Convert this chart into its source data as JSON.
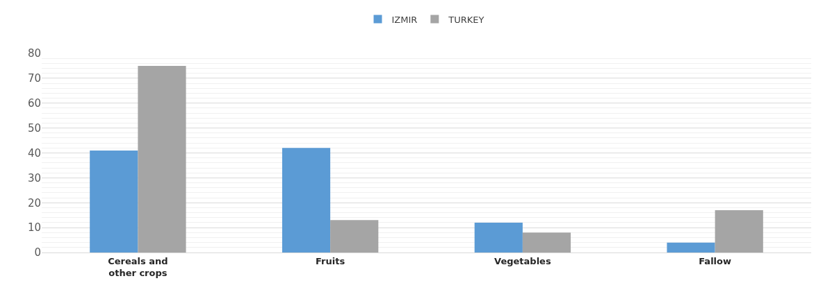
{
  "chart_data": {
    "type": "bar",
    "categories": [
      "Cereals and other crops",
      "Fruits",
      "Vegetables",
      "Fallow"
    ],
    "series": [
      {
        "name": "IZMIR",
        "color": "#5b9bd5",
        "values": [
          41,
          42,
          12,
          4
        ]
      },
      {
        "name": "TURKEY",
        "color": "#a5a5a5",
        "values": [
          75,
          13,
          8,
          17
        ]
      }
    ],
    "ylim": [
      0,
      80
    ],
    "yticks": [
      0,
      10,
      20,
      30,
      40,
      50,
      60,
      70,
      80
    ],
    "grid": "y",
    "legend": "top"
  }
}
